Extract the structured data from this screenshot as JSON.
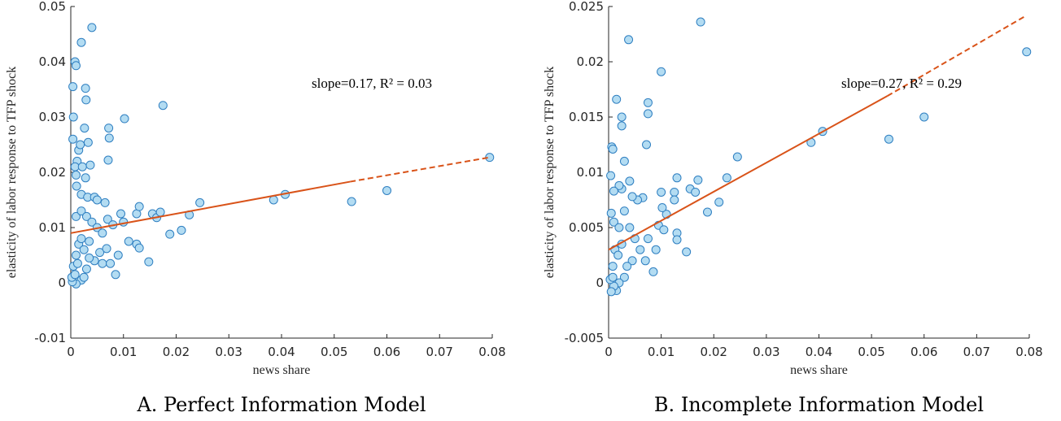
{
  "chart_data": [
    {
      "type": "scatter",
      "title": "A. Perfect Information Model",
      "x_label": "news share",
      "y_label": "elasticity of labor response to TFP shock",
      "annotation": "slope=0.17, R² = 0.03",
      "xlim": [
        0,
        0.08
      ],
      "xticks": [
        0,
        0.01,
        0.02,
        0.03,
        0.04,
        0.05,
        0.06,
        0.07,
        0.08
      ],
      "ylim": [
        -0.01,
        0.05
      ],
      "yticks": [
        -0.01,
        0,
        0.01,
        0.02,
        0.03,
        0.04,
        0.05
      ],
      "marker_color": "#b3dcf2",
      "marker_edge": "#2f7fc1",
      "x": [
        0.0004,
        0.0005,
        0.0008,
        0.001,
        0.0004,
        0.002,
        0.004,
        0.0028,
        0.0029,
        0.0026,
        0.0033,
        0.0015,
        0.0018,
        0.0012,
        0.0008,
        0.001,
        0.0022,
        0.0028,
        0.0037,
        0.0011,
        0.002,
        0.0032,
        0.0045,
        0.005,
        0.0065,
        0.0072,
        0.0073,
        0.0071,
        0.0102,
        0.0175,
        0.001,
        0.002,
        0.003,
        0.004,
        0.005,
        0.006,
        0.007,
        0.008,
        0.0095,
        0.01,
        0.011,
        0.0125,
        0.013,
        0.0125,
        0.013,
        0.0148,
        0.0155,
        0.0163,
        0.017,
        0.0188,
        0.021,
        0.0225,
        0.0245,
        0.0385,
        0.0407,
        0.0533,
        0.06,
        0.0795,
        0.0085,
        0.0055,
        0.0045,
        0.003,
        0.002,
        0.001,
        0.0003,
        0.0005,
        0.001,
        0.0015,
        0.002,
        0.0025,
        0.0035,
        0.006,
        0.0068,
        0.0075,
        0.009,
        0.0002,
        0.0008,
        0.0013,
        0.0025,
        0.0035
      ],
      "y": [
        0.0355,
        0.03,
        0.04,
        0.0393,
        0.026,
        0.0435,
        0.0462,
        0.0352,
        0.0331,
        0.028,
        0.0254,
        0.024,
        0.025,
        0.022,
        0.021,
        0.0195,
        0.021,
        0.019,
        0.0213,
        0.0175,
        0.016,
        0.0155,
        0.0155,
        0.015,
        0.0145,
        0.028,
        0.0262,
        0.0222,
        0.0297,
        0.0321,
        0.012,
        0.013,
        0.012,
        0.011,
        0.01,
        0.009,
        0.0115,
        0.0105,
        0.0125,
        0.011,
        0.0075,
        0.0125,
        0.0138,
        0.007,
        0.0063,
        0.0038,
        0.0125,
        0.0118,
        0.0128,
        0.0088,
        0.0095,
        0.0123,
        0.0145,
        0.015,
        0.016,
        0.0147,
        0.0167,
        0.0227,
        0.0015,
        0.0055,
        0.004,
        0.0025,
        0.0005,
        -0.0002,
        0.0002,
        0.003,
        0.005,
        0.007,
        0.008,
        0.006,
        0.0075,
        0.0035,
        0.0062,
        0.0035,
        0.005,
        0.001,
        0.0015,
        0.0035,
        0.001,
        0.0045
      ],
      "lines": [
        {
          "x": [
            0,
            0.053
          ],
          "y": [
            0.009,
            0.0183
          ],
          "color": "#d95319",
          "dash": false
        },
        {
          "x": [
            0.053,
            0.0795
          ],
          "y": [
            0.0183,
            0.0227
          ],
          "color": "#d95319",
          "dash": true
        }
      ]
    },
    {
      "type": "scatter",
      "title": "B. Incomplete Information Model",
      "x_label": "news share",
      "y_label": "elasticity of labor response to TFP shock",
      "annotation": "slope=0.27, R² = 0.29",
      "xlim": [
        0,
        0.08
      ],
      "xticks": [
        0,
        0.01,
        0.02,
        0.03,
        0.04,
        0.05,
        0.06,
        0.07,
        0.08
      ],
      "ylim": [
        -0.005,
        0.025
      ],
      "yticks": [
        -0.005,
        0,
        0.005,
        0.01,
        0.015,
        0.02,
        0.025
      ],
      "marker_color": "#b3dcf2",
      "marker_edge": "#2f7fc1",
      "x": [
        0.0004,
        0.0006,
        0.0008,
        0.0015,
        0.0025,
        0.0025,
        0.0038,
        0.0075,
        0.0075,
        0.0072,
        0.01,
        0.0175,
        0.0795,
        0.06,
        0.0533,
        0.0407,
        0.0385,
        0.0245,
        0.0225,
        0.021,
        0.0188,
        0.0155,
        0.0165,
        0.017,
        0.013,
        0.0125,
        0.0125,
        0.011,
        0.01,
        0.0102,
        0.0095,
        0.0085,
        0.009,
        0.0148,
        0.013,
        0.013,
        0.0105,
        0.0065,
        0.0055,
        0.0045,
        0.004,
        0.003,
        0.0025,
        0.002,
        0.001,
        0.0005,
        0.001,
        0.002,
        0.003,
        0.004,
        0.005,
        0.006,
        0.007,
        0.0075,
        0.0045,
        0.0035,
        0.003,
        0.002,
        0.0015,
        0.001,
        0.0005,
        0.0003,
        0.0008,
        0.0012,
        0.0018,
        0.0025,
        0.0008
      ],
      "y": [
        0.0097,
        0.0123,
        0.0121,
        0.0166,
        0.015,
        0.0142,
        0.022,
        0.0163,
        0.0153,
        0.0125,
        0.0191,
        0.0236,
        0.0209,
        0.015,
        0.013,
        0.0137,
        0.0127,
        0.0114,
        0.0095,
        0.0073,
        0.0064,
        0.0085,
        0.0082,
        0.0093,
        0.0095,
        0.0082,
        0.0075,
        0.0062,
        0.0082,
        0.0068,
        0.0052,
        0.001,
        0.003,
        0.0028,
        0.0045,
        0.0039,
        0.0048,
        0.0077,
        0.0075,
        0.0078,
        0.0092,
        0.011,
        0.0085,
        0.0088,
        0.0083,
        0.0063,
        0.0055,
        0.005,
        0.0065,
        0.005,
        0.004,
        0.003,
        0.002,
        0.004,
        0.002,
        0.0015,
        0.0005,
        0,
        -0.0007,
        -0.0003,
        -0.0008,
        0.0003,
        0.0015,
        0.003,
        0.0025,
        0.0035,
        0.0005
      ],
      "lines": [
        {
          "x": [
            0,
            0.053
          ],
          "y": [
            0.003,
            0.0169
          ],
          "color": "#d95319",
          "dash": false
        },
        {
          "x": [
            0.053,
            0.0795
          ],
          "y": [
            0.0169,
            0.0242
          ],
          "color": "#d95319",
          "dash": true
        }
      ]
    }
  ]
}
